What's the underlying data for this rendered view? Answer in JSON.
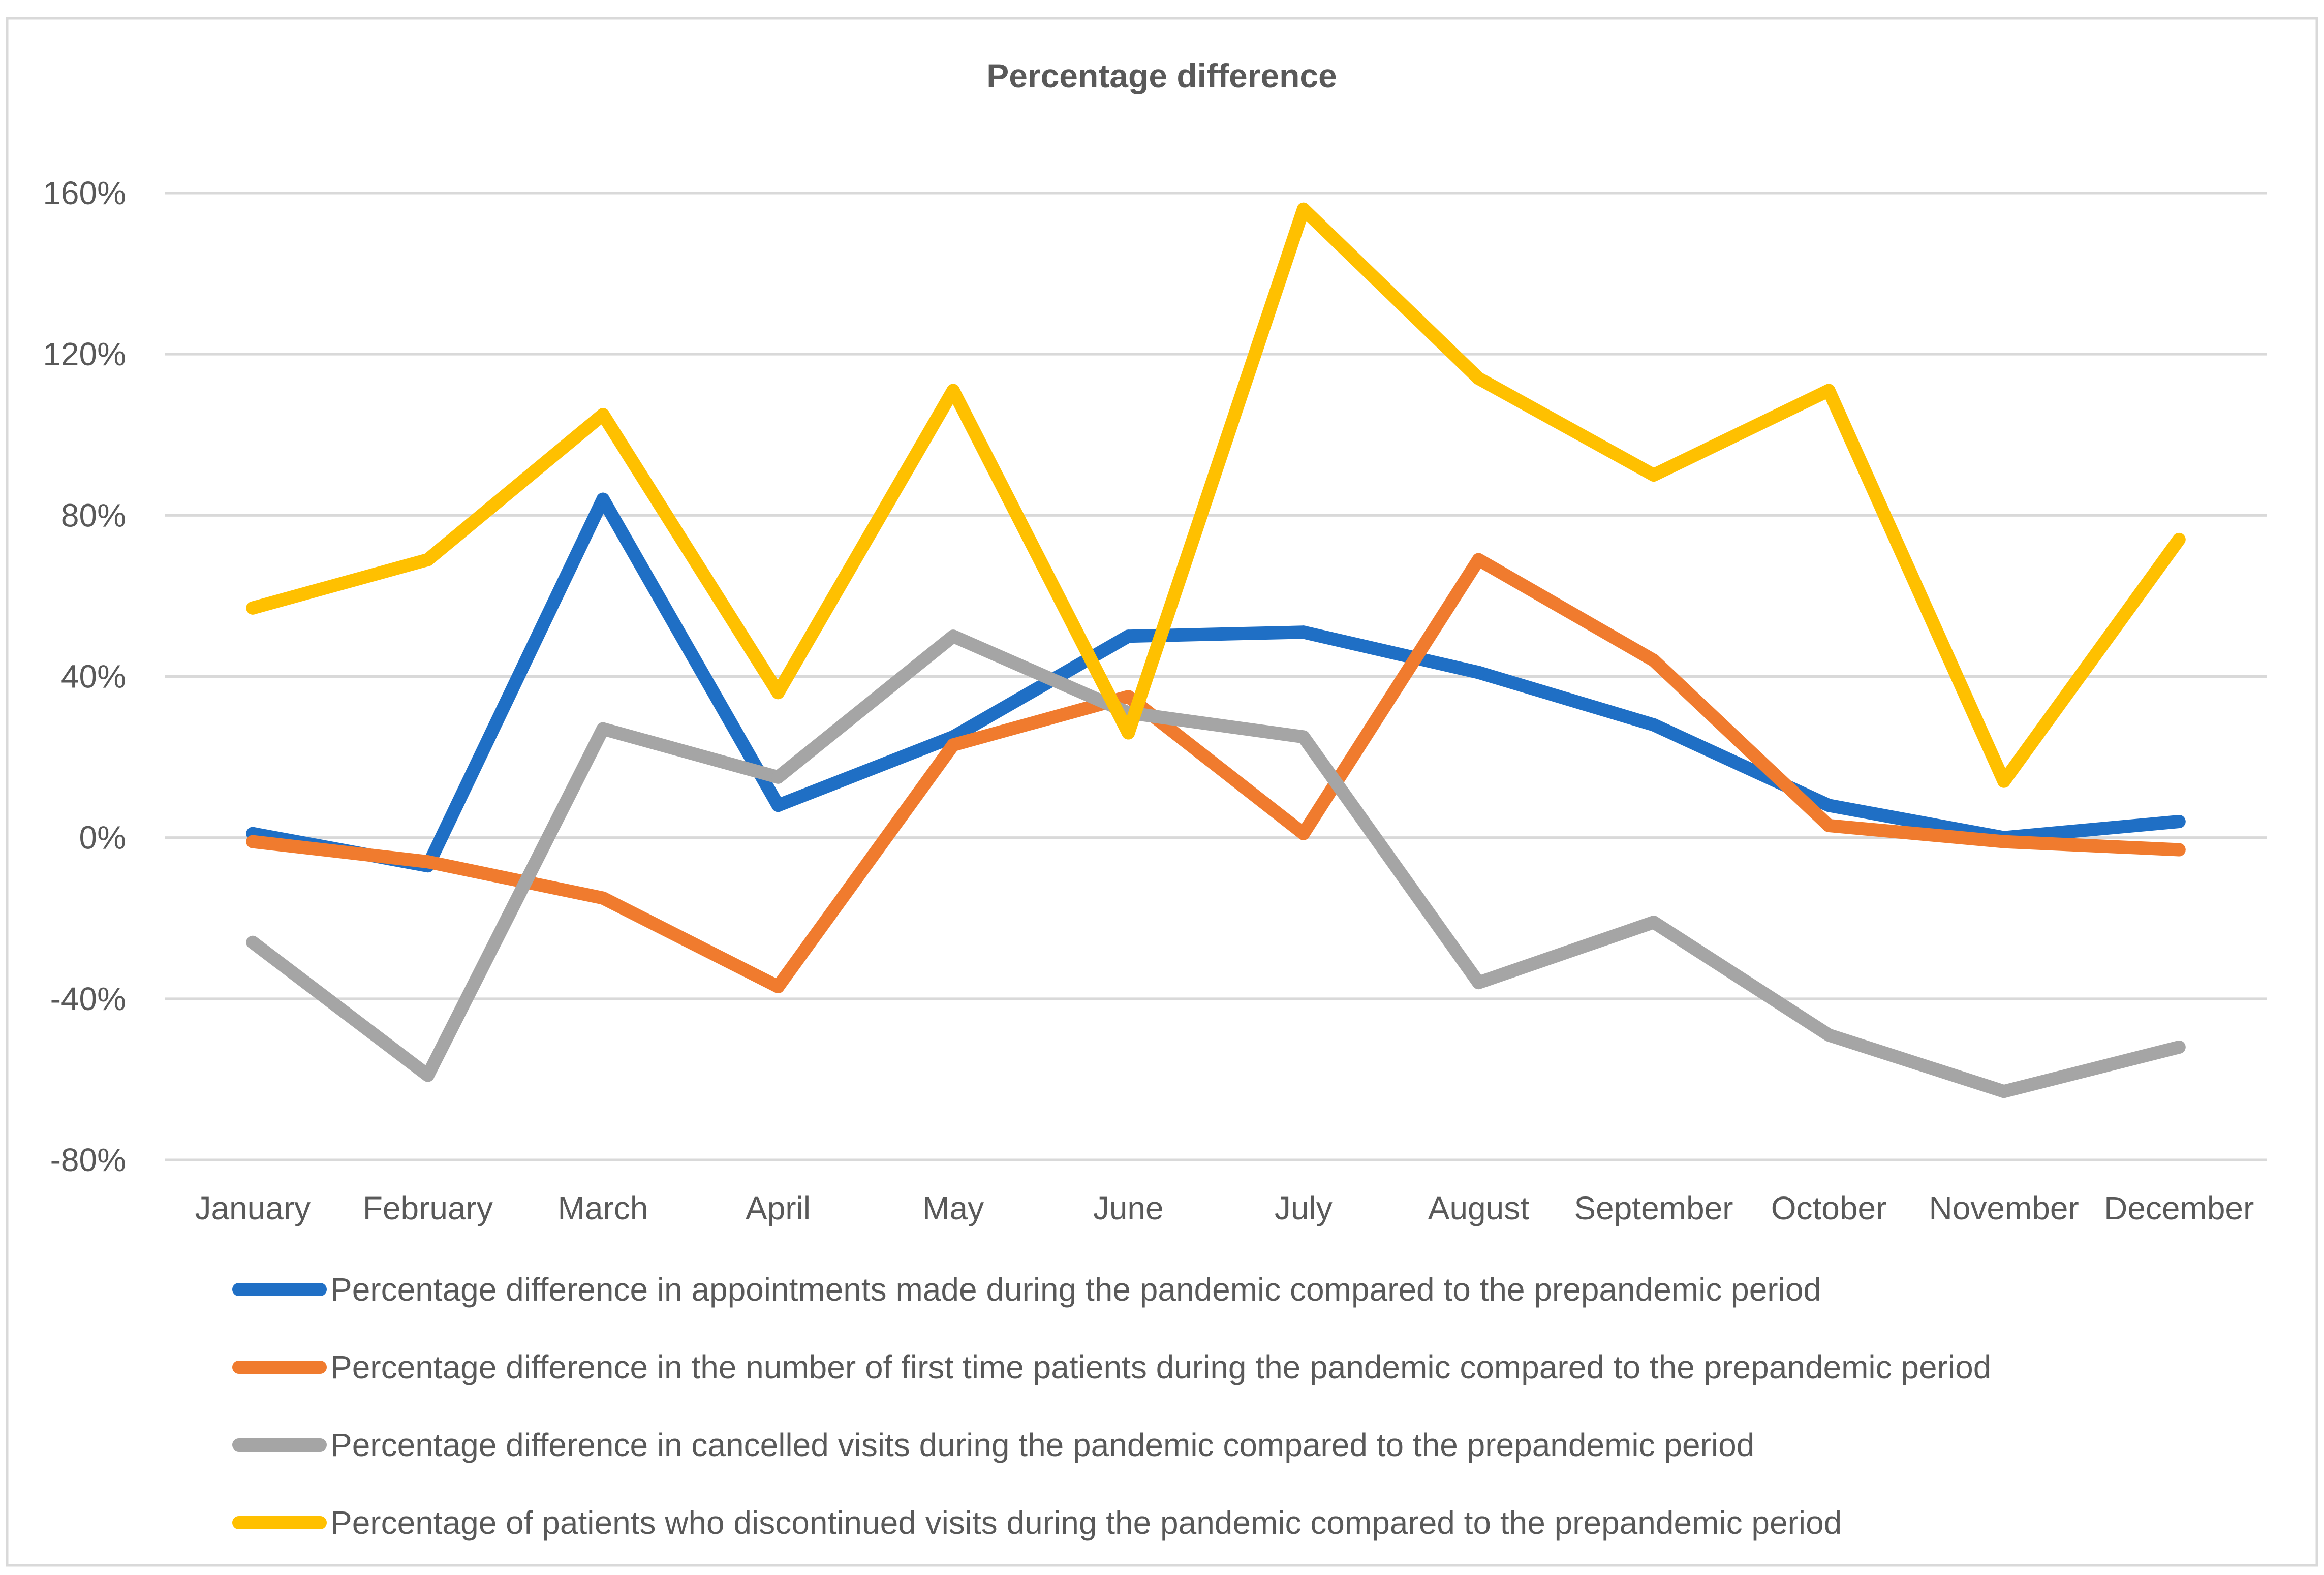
{
  "chart_data": {
    "type": "line",
    "title": "Percentage difference",
    "xlabel": "",
    "ylabel": "",
    "categories": [
      "January",
      "February",
      "March",
      "April",
      "May",
      "June",
      "July",
      "August",
      "September",
      "October",
      "November",
      "December"
    ],
    "yticks": [
      -80,
      -40,
      0,
      40,
      80,
      120,
      160
    ],
    "ytick_labels": [
      "-80%",
      "-40%",
      "0%",
      "40%",
      "80%",
      "120%",
      "160%"
    ],
    "ylim": [
      -80,
      160
    ],
    "grid": true,
    "legend_position": "bottom",
    "series": [
      {
        "name": "Percentage difference in appointments made during the pandemic compared to the prepandemic period",
        "color": "#1F6FC5",
        "values": [
          1,
          -7,
          84,
          8,
          25,
          50,
          51,
          41,
          28,
          8,
          0,
          4
        ]
      },
      {
        "name": "Percentage difference in the number of first time patients during the pandemic compared to the prepandemic period",
        "color": "#F07B2E",
        "values": [
          -1,
          -6,
          -15,
          -37,
          23,
          35,
          1,
          69,
          44,
          3,
          -1,
          -3
        ]
      },
      {
        "name": "Percentage difference in cancelled visits during the pandemic compared to the prepandemic period",
        "color": "#A5A5A5",
        "values": [
          -26,
          -59,
          27,
          15,
          50,
          31,
          25,
          -36,
          -21,
          -49,
          -63,
          -52
        ]
      },
      {
        "name": "Percentage of patients who discontinued visits during the pandemic compared to the prepandemic period",
        "color": "#FFC000",
        "values": [
          57,
          69,
          105,
          36,
          111,
          26,
          156,
          114,
          90,
          111,
          14,
          74
        ]
      }
    ]
  }
}
